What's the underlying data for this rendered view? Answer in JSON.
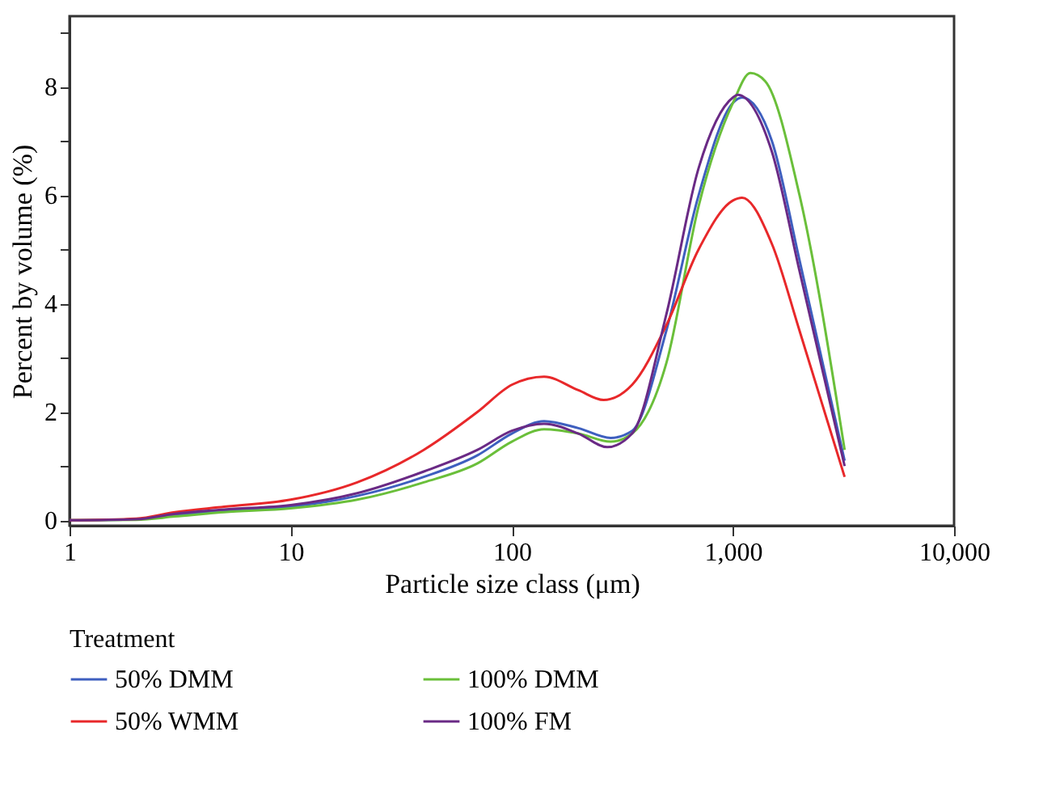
{
  "chart_data": {
    "type": "line",
    "xlabel": "Particle size class (μm)",
    "ylabel": "Percent by volume (%)",
    "legend_title": "Treatment",
    "legend": "bottom",
    "grid": false,
    "log": "x",
    "line_style": "solid",
    "marker": "none",
    "xlim": [
      1,
      10000
    ],
    "xticks": [
      1,
      10,
      100,
      {
        "value": 1000,
        "label": "1,000"
      },
      {
        "value": 10000,
        "label": "10,000"
      }
    ],
    "ylim": [
      -0.1,
      9.3
    ],
    "yticks": [
      0,
      {
        "value": 1,
        "label": null
      },
      2,
      {
        "value": 3,
        "label": null
      },
      4,
      {
        "value": 5,
        "label": null
      },
      6,
      {
        "value": 7,
        "label": null
      },
      8,
      {
        "value": 9,
        "label": null
      }
    ],
    "series": [
      {
        "name": "50% DMM",
        "color": "#3e5fbf",
        "x": [
          1,
          2,
          3,
          5,
          10,
          20,
          40,
          70,
          100,
          140,
          200,
          280,
          350,
          500,
          700,
          1000,
          1100,
          1500,
          2000,
          3200
        ],
        "values": [
          0,
          0.02,
          0.1,
          0.18,
          0.25,
          0.45,
          0.8,
          1.2,
          1.6,
          1.83,
          1.7,
          1.52,
          1.65,
          3.5,
          6.0,
          7.7,
          7.8,
          7.0,
          4.8,
          1.1
        ]
      },
      {
        "name": "100% DMM",
        "color": "#6abf3a",
        "x": [
          1,
          2,
          3,
          5,
          10,
          20,
          40,
          70,
          100,
          140,
          200,
          280,
          350,
          500,
          700,
          1000,
          1200,
          1400,
          2000,
          3200
        ],
        "values": [
          0,
          0.01,
          0.07,
          0.15,
          0.22,
          0.38,
          0.7,
          1.05,
          1.45,
          1.68,
          1.6,
          1.45,
          1.6,
          2.9,
          5.8,
          7.7,
          8.25,
          8.1,
          6.0,
          1.3
        ]
      },
      {
        "name": "50% WMM",
        "color": "#e8282a",
        "x": [
          1,
          2,
          3,
          5,
          10,
          20,
          40,
          70,
          100,
          140,
          200,
          260,
          350,
          500,
          700,
          1000,
          1100,
          1500,
          2000,
          3200
        ],
        "values": [
          0,
          0.03,
          0.15,
          0.25,
          0.38,
          0.7,
          1.3,
          2.0,
          2.5,
          2.65,
          2.4,
          2.22,
          2.5,
          3.6,
          5.0,
          5.9,
          5.95,
          5.1,
          3.5,
          0.8
        ]
      },
      {
        "name": "100% FM",
        "color": "#6a2a85",
        "x": [
          1,
          2,
          3,
          5,
          10,
          20,
          40,
          70,
          100,
          140,
          200,
          270,
          350,
          500,
          700,
          1000,
          1050,
          1500,
          2000,
          3200
        ],
        "values": [
          0,
          0.02,
          0.12,
          0.2,
          0.28,
          0.5,
          0.9,
          1.3,
          1.65,
          1.78,
          1.6,
          1.35,
          1.6,
          3.8,
          6.5,
          7.8,
          7.85,
          6.8,
          4.6,
          1.0
        ]
      }
    ]
  }
}
